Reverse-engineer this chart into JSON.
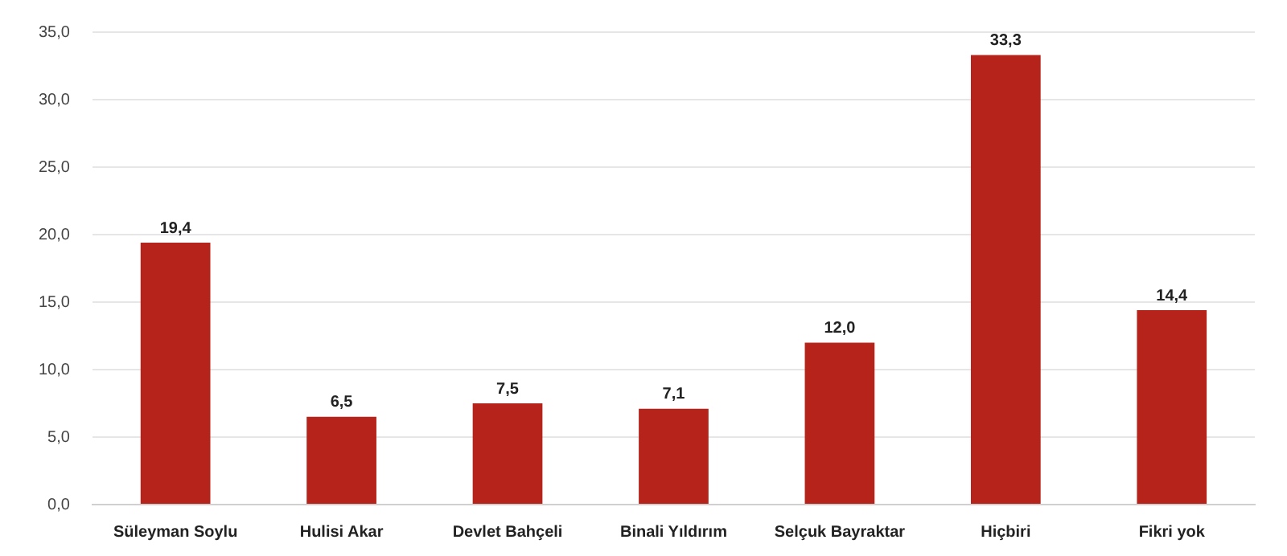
{
  "chart_data": {
    "type": "bar",
    "categories": [
      "Süleyman Soylu",
      "Hulisi Akar",
      "Devlet Bahçeli",
      "Binali Yıldırım",
      "Selçuk Bayraktar",
      "Hiçbiri",
      "Fikri yok"
    ],
    "values": [
      19.4,
      6.5,
      7.5,
      7.1,
      12.0,
      33.3,
      14.4
    ],
    "value_labels": [
      "19,4",
      "6,5",
      "7,5",
      "7,1",
      "12,0",
      "33,3",
      "14,4"
    ],
    "color": "#b5231a",
    "ylim": [
      0,
      35
    ],
    "yticks": [
      {
        "value": 0,
        "label": "0,0"
      },
      {
        "value": 5,
        "label": "5,0"
      },
      {
        "value": 10,
        "label": "10,0"
      },
      {
        "value": 15,
        "label": "15,0"
      },
      {
        "value": 20,
        "label": "20,0"
      },
      {
        "value": 25,
        "label": "25,0"
      },
      {
        "value": 30,
        "label": "30,0"
      },
      {
        "value": 35,
        "label": "35,0"
      }
    ],
    "grid": "y",
    "legend": false
  }
}
